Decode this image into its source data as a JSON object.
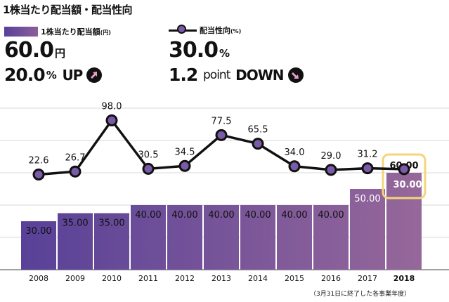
{
  "title": "1株当たり配当額・配当性向",
  "legend": {
    "bar_label": "1株当たり配当額",
    "bar_unit": "(円)",
    "line_label": "配当性向",
    "line_unit": "(%)"
  },
  "headline": {
    "dividend_value": "60.0",
    "dividend_unit": "円",
    "dividend_change": "20.0",
    "dividend_change_unit": "%",
    "dividend_change_dir": "UP",
    "payout_value": "30.0",
    "payout_unit": "%",
    "payout_change": "1.2",
    "payout_change_unit": "point",
    "payout_change_dir": "DOWN"
  },
  "note": "（3月31日に終了した各事業年度）",
  "colors": {
    "bar_start": "#553f98",
    "bar_end": "#9a6a9a",
    "line": "#111111",
    "marker": "#7a5ba8",
    "highlight_border": "#f3d57a",
    "grid": "#d8d8d8"
  },
  "chart_data": {
    "type": "bar+line",
    "categories": [
      "2008",
      "2009",
      "2010",
      "2011",
      "2012",
      "2013",
      "2014",
      "2015",
      "2016",
      "2017",
      "2018"
    ],
    "series": [
      {
        "name": "1株当たり配当額",
        "type": "bar",
        "values": [
          30.0,
          35.0,
          35.0,
          40.0,
          40.0,
          40.0,
          40.0,
          40.0,
          40.0,
          50.0,
          60.0
        ],
        "labels": [
          "30.00",
          "35.00",
          "35.00",
          "40.00",
          "40.00",
          "40.00",
          "40.00",
          "40.00",
          "40.00",
          "50.00",
          "60.00"
        ]
      },
      {
        "name": "配当性向",
        "type": "line",
        "values": [
          22.6,
          26.7,
          98.0,
          30.5,
          34.5,
          77.5,
          65.5,
          34.0,
          29.0,
          31.2,
          30.0
        ],
        "labels": [
          "22.6",
          "26.7",
          "98.0",
          "30.5",
          "34.5",
          "77.5",
          "65.5",
          "34.0",
          "29.0",
          "31.2",
          "30.00"
        ]
      }
    ],
    "highlight_category": "2018",
    "bar_ylim": [
      0,
      100
    ],
    "line_ylim": [
      -110,
      115
    ],
    "grid": true
  }
}
